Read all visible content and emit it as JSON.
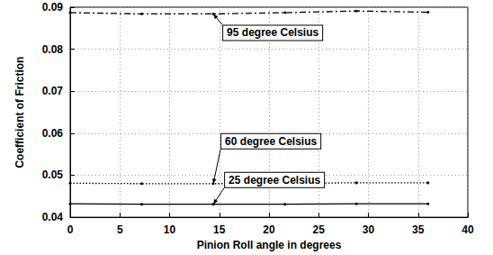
{
  "chart_data": {
    "type": "line",
    "x_label": "Pinion Roll angle in degrees",
    "y_label": "Coefficient of Friction",
    "x": [
      0,
      7.2,
      14.4,
      21.6,
      28.8,
      36
    ],
    "series": [
      {
        "name": "95 degree Celsius",
        "color": "#000000",
        "marker": "circle",
        "line_style": "dashdot",
        "values": [
          0.0887,
          0.0884,
          0.0884,
          0.0887,
          0.0891,
          0.0888
        ]
      },
      {
        "name": "60 degree Celsius",
        "color": "#000000",
        "marker": "circle",
        "line_style": "dotted",
        "values": [
          0.0481,
          0.048,
          0.048,
          0.0481,
          0.0482,
          0.0482
        ]
      },
      {
        "name": "25 degree Celsius",
        "color": "#000000",
        "marker": "circle",
        "line_style": "solid",
        "values": [
          0.0432,
          0.0431,
          0.0431,
          0.0431,
          0.0432,
          0.0432
        ]
      }
    ],
    "xlim": [
      0,
      40
    ],
    "xticks": [
      0,
      5,
      10,
      15,
      20,
      25,
      30,
      35,
      40
    ],
    "ylim": [
      0.04,
      0.09
    ],
    "yticks": [
      0.04,
      0.05,
      0.06,
      0.07,
      0.08,
      0.09
    ],
    "grid": true
  }
}
